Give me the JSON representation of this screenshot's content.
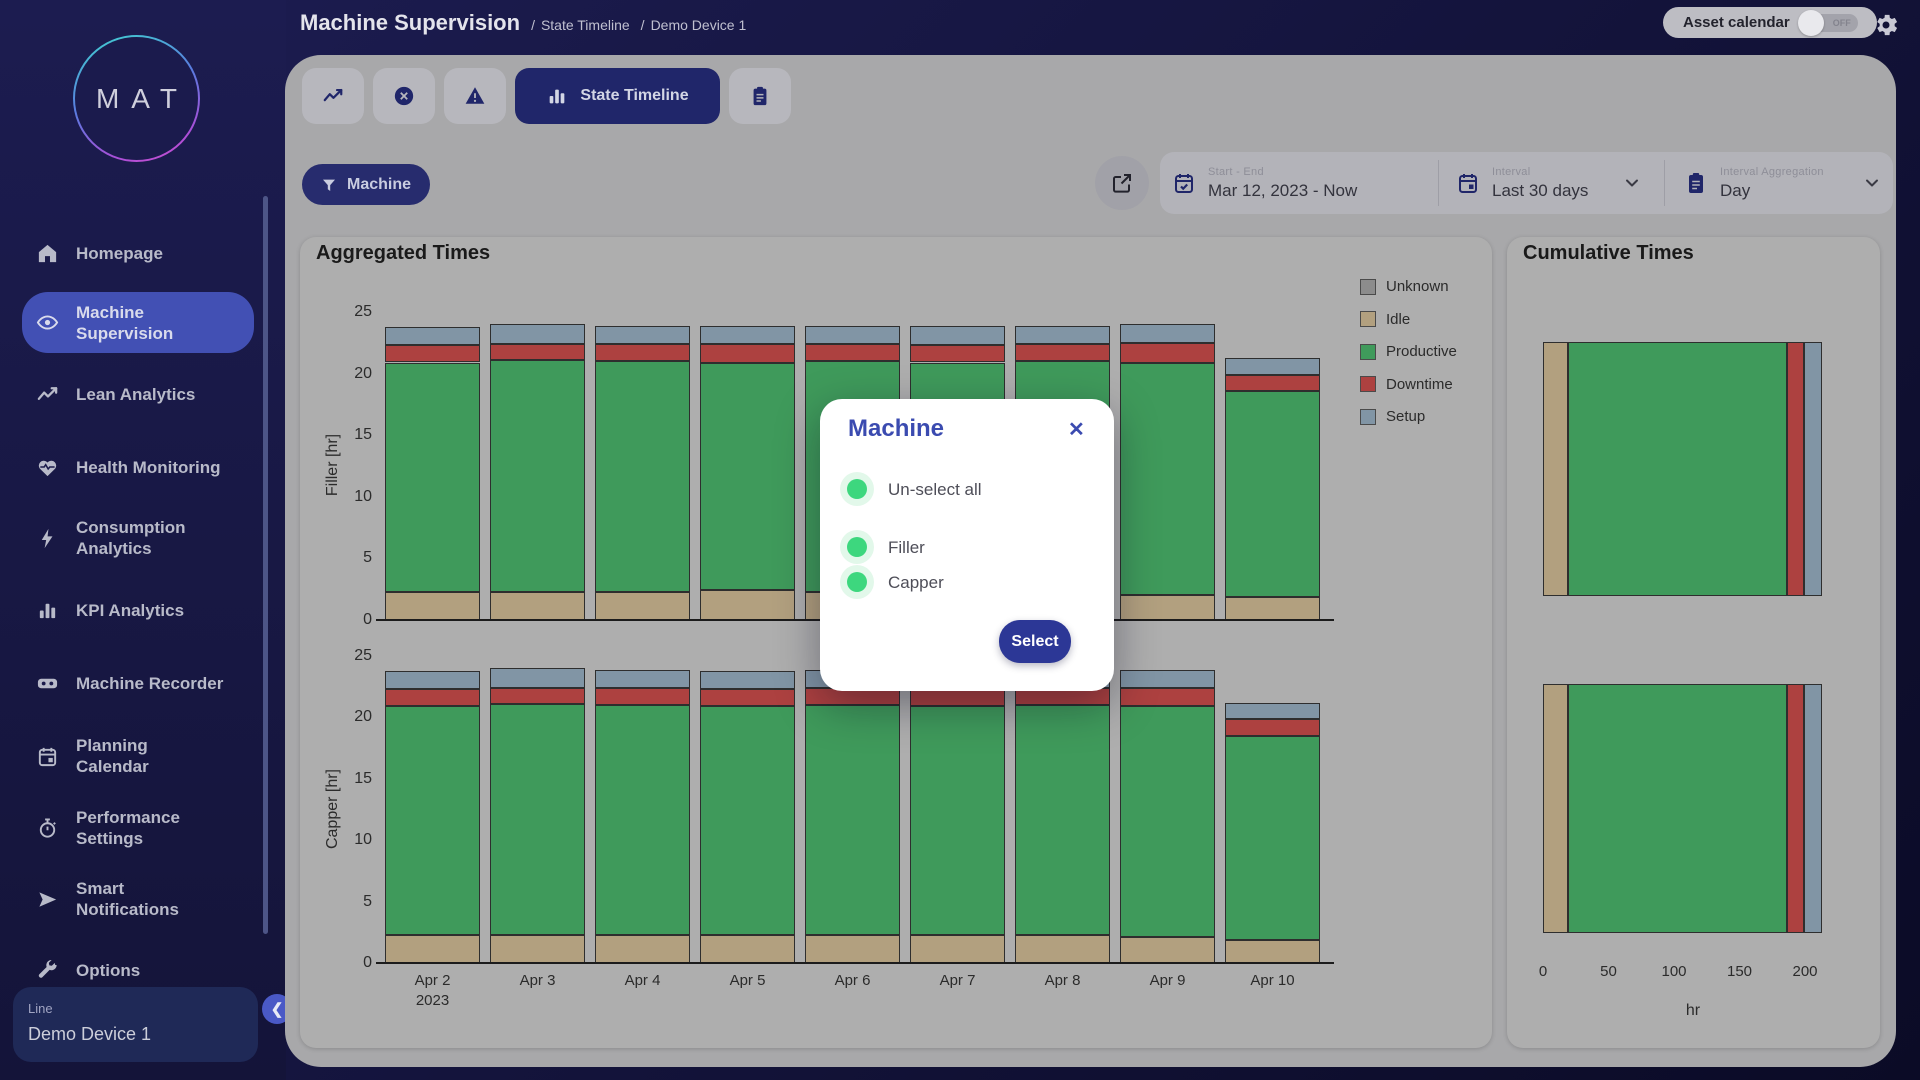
{
  "header": {
    "title": "Machine Supervision",
    "crumbs": [
      "State Timeline",
      "Demo Device 1"
    ],
    "asset_calendar": {
      "label": "Asset calendar",
      "state": "OFF"
    }
  },
  "sidebar": {
    "logo_text": "MAT",
    "items": [
      {
        "label": "Homepage",
        "icon": "home-icon",
        "active": false
      },
      {
        "label": "Machine Supervision",
        "icon": "eye-icon",
        "active": true
      },
      {
        "label": "Lean Analytics",
        "icon": "trend-icon",
        "active": false
      },
      {
        "label": "Health Monitoring",
        "icon": "heart-pulse-icon",
        "active": false
      },
      {
        "label": "Consumption Analytics",
        "icon": "bolt-icon",
        "active": false
      },
      {
        "label": "KPI Analytics",
        "icon": "bar-chart-icon",
        "active": false
      },
      {
        "label": "Machine Recorder",
        "icon": "recorder-icon",
        "active": false
      },
      {
        "label": "Planning Calendar",
        "icon": "calendar-icon",
        "active": false
      },
      {
        "label": "Performance Settings",
        "icon": "stopwatch-icon",
        "active": false
      },
      {
        "label": "Smart Notifications",
        "icon": "send-icon",
        "active": false
      },
      {
        "label": "Options",
        "icon": "wrench-icon",
        "active": false
      }
    ],
    "device_card": {
      "label": "Line",
      "value": "Demo Device 1"
    }
  },
  "tabs": [
    {
      "icon": "trend-icon",
      "label": "",
      "active": false
    },
    {
      "icon": "x-circle-icon",
      "label": "",
      "active": false
    },
    {
      "icon": "warning-icon",
      "label": "",
      "active": false
    },
    {
      "icon": "bar-chart-icon",
      "label": "State Timeline",
      "active": true
    },
    {
      "icon": "clipboard-icon",
      "label": "",
      "active": false
    }
  ],
  "filter_button": {
    "label": "Machine"
  },
  "controls": {
    "start_end": {
      "label": "Start - End",
      "value": "Mar 12, 2023 - Now",
      "icon": "calendar-check-icon"
    },
    "interval": {
      "label": "Interval",
      "value": "Last 30 days",
      "icon": "calendar-icon"
    },
    "aggregation": {
      "label": "Interval Aggregation",
      "value": "Day",
      "icon": "clipboard-icon"
    }
  },
  "modal": {
    "title": "Machine",
    "options": [
      "Un-select all",
      "Filler",
      "Capper"
    ],
    "select_label": "Select"
  },
  "colors": {
    "unknown": "#8c8c8c",
    "idle": "#b2a07f",
    "productive": "#3f9a5b",
    "downtime": "#ad4140",
    "setup": "#8195a5",
    "accent_navy": "#272c6e",
    "active_blue": "#4250b4",
    "radio_green": "#3dd77e"
  },
  "chart_data": [
    {
      "type": "bar",
      "title": "Aggregated Times",
      "stacked": true,
      "categories": [
        "Apr 2\n2023",
        "Apr 3",
        "Apr 4",
        "Apr 5",
        "Apr 6",
        "Apr 7",
        "Apr 8",
        "Apr 9",
        "Apr 10"
      ],
      "ylim": [
        0,
        25
      ],
      "yticks": [
        0,
        5,
        10,
        15,
        20,
        25
      ],
      "legend": [
        {
          "label": "Unknown",
          "key": "unknown"
        },
        {
          "label": "Idle",
          "key": "idle"
        },
        {
          "label": "Productive",
          "key": "productive"
        },
        {
          "label": "Downtime",
          "key": "downtime"
        },
        {
          "label": "Setup",
          "key": "setup"
        }
      ],
      "subplots": [
        {
          "ylabel": "Filler [hr]",
          "series": [
            {
              "name": "Idle",
              "key": "idle",
              "values": [
                2.3,
                2.3,
                2.3,
                2.4,
                2.3,
                2.3,
                2.3,
                2.0,
                1.9
              ]
            },
            {
              "name": "Productive",
              "key": "productive",
              "values": [
                18.6,
                18.8,
                18.7,
                18.5,
                18.7,
                18.6,
                18.7,
                18.9,
                16.7
              ]
            },
            {
              "name": "Downtime",
              "key": "downtime",
              "values": [
                1.4,
                1.3,
                1.4,
                1.5,
                1.4,
                1.4,
                1.4,
                1.6,
                1.3
              ]
            },
            {
              "name": "Setup",
              "key": "setup",
              "values": [
                1.5,
                1.6,
                1.5,
                1.5,
                1.5,
                1.6,
                1.5,
                1.5,
                1.4
              ]
            }
          ]
        },
        {
          "ylabel": "Capper [hr]",
          "series": [
            {
              "name": "Idle",
              "key": "idle",
              "values": [
                2.3,
                2.3,
                2.3,
                2.3,
                2.3,
                2.3,
                2.3,
                2.1,
                1.9
              ]
            },
            {
              "name": "Productive",
              "key": "productive",
              "values": [
                18.6,
                18.8,
                18.7,
                18.6,
                18.7,
                18.6,
                18.7,
                18.8,
                16.6
              ]
            },
            {
              "name": "Downtime",
              "key": "downtime",
              "values": [
                1.4,
                1.3,
                1.4,
                1.4,
                1.4,
                1.4,
                1.4,
                1.5,
                1.4
              ]
            },
            {
              "name": "Setup",
              "key": "setup",
              "values": [
                1.5,
                1.6,
                1.5,
                1.5,
                1.5,
                1.6,
                1.5,
                1.5,
                1.3
              ]
            }
          ]
        }
      ]
    },
    {
      "type": "bar",
      "orientation": "horizontal",
      "title": "Cumulative Times",
      "stacked": true,
      "xlabel": "hr",
      "xlim": [
        0,
        200
      ],
      "xticks": [
        0,
        50,
        100,
        150,
        200
      ],
      "bars": [
        {
          "name": "Filler",
          "segments": [
            {
              "name": "Idle",
              "key": "idle",
              "value": 19
            },
            {
              "name": "Productive",
              "key": "productive",
              "value": 167
            },
            {
              "name": "Downtime",
              "key": "downtime",
              "value": 13
            },
            {
              "name": "Setup",
              "key": "setup",
              "value": 14
            }
          ]
        },
        {
          "name": "Capper",
          "segments": [
            {
              "name": "Idle",
              "key": "idle",
              "value": 19
            },
            {
              "name": "Productive",
              "key": "productive",
              "value": 167
            },
            {
              "name": "Downtime",
              "key": "downtime",
              "value": 13
            },
            {
              "name": "Setup",
              "key": "setup",
              "value": 14
            }
          ]
        }
      ]
    }
  ]
}
